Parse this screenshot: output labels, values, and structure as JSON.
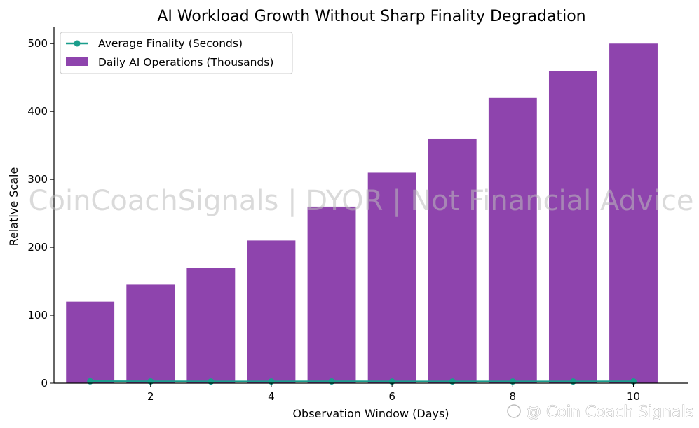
{
  "chart_data": {
    "type": "bar+line",
    "title": "AI Workload Growth Without Sharp Finality Degradation",
    "xlabel": "Observation Window (Days)",
    "ylabel": "Relative Scale",
    "x": [
      1,
      2,
      3,
      4,
      5,
      6,
      7,
      8,
      9,
      10
    ],
    "xticks": [
      2,
      4,
      6,
      8,
      10
    ],
    "yticks": [
      0,
      100,
      200,
      300,
      400,
      500
    ],
    "xlim": [
      0.4,
      10.9
    ],
    "ylim": [
      0,
      525
    ],
    "legend_position": "top-left",
    "series": [
      {
        "name": "Average Finality (Seconds)",
        "kind": "line",
        "color": "#1a9e8c",
        "values": [
          2.8,
          2.6,
          2.5,
          2.5,
          2.6,
          2.4,
          2.5,
          2.5,
          2.5,
          2.6
        ]
      },
      {
        "name": "Daily AI Operations (Thousands)",
        "kind": "bar",
        "color": "#8e44ad",
        "values": [
          120,
          145,
          170,
          210,
          260,
          310,
          360,
          420,
          460,
          500
        ]
      }
    ],
    "grid": false
  },
  "watermark": "CoinCoachSignals | DYOR | Not Financial Advice",
  "corner_watermark": "@ Coin Coach Signals"
}
